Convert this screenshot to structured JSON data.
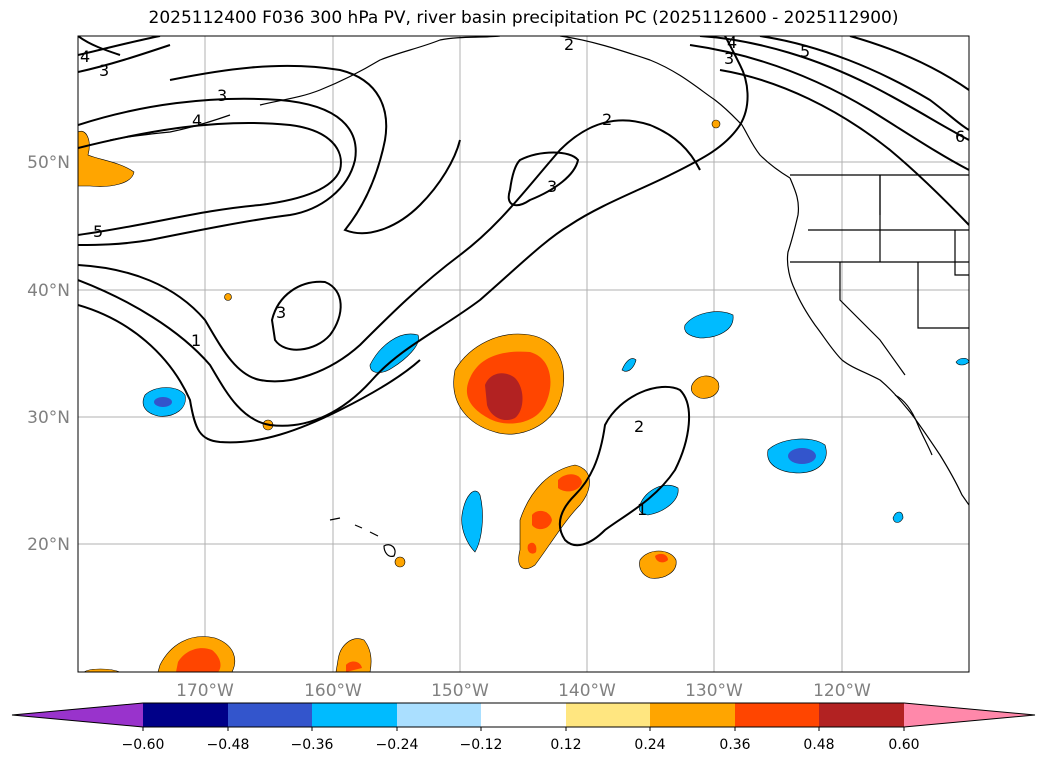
{
  "title": "2025112400 F036 300 hPa PV, river basin precipitation PC (2025112600 - 2025112900)",
  "map": {
    "lat_labels": [
      "50°N",
      "40°N",
      "30°N",
      "20°N"
    ],
    "lon_labels": [
      "170°W",
      "160°W",
      "150°W",
      "140°W",
      "130°W",
      "120°W"
    ],
    "contour_labels": [
      "4",
      "3",
      "2",
      "4",
      "3",
      "5",
      "3",
      "4",
      "2",
      "3",
      "5",
      "6",
      "3",
      "1",
      "2",
      "1"
    ]
  },
  "colorbar": {
    "ticks": [
      "−0.60",
      "−0.48",
      "−0.36",
      "−0.24",
      "−0.12",
      "0.12",
      "0.24",
      "0.36",
      "0.48",
      "0.60"
    ],
    "colors": [
      "#9933cc",
      "#000088",
      "#3355cc",
      "#00bbff",
      "#aadfff",
      "#ffffff",
      "#ffe680",
      "#ffa500",
      "#ff4500",
      "#b22222",
      "#ff88aa"
    ]
  }
}
